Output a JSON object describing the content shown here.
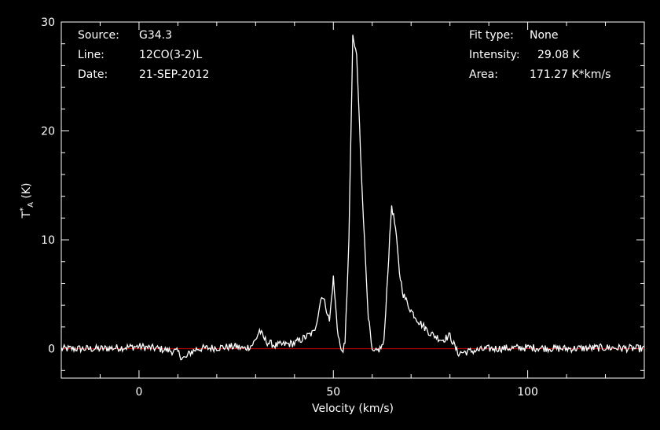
{
  "info_left": {
    "source_label": "Source:",
    "source_value": "G34.3",
    "line_label": "Line:",
    "line_value": "12CO(3-2)L",
    "date_label": "Date:",
    "date_value": "21-SEP-2012"
  },
  "info_right": {
    "fit_label": "Fit type:",
    "fit_value": "None",
    "intensity_label": "Intensity:",
    "intensity_value": "29.08 K",
    "area_label": "Area:",
    "area_value": "171.27 K*km/s"
  },
  "chart_data": {
    "type": "line",
    "xlabel": "Velocity (km/s)",
    "ylabel": "T*A (K)",
    "xlim": [
      -20,
      130
    ],
    "ylim": [
      -2.7,
      30
    ],
    "xticks": [
      0,
      50,
      100
    ],
    "yticks": [
      0,
      10,
      20,
      30
    ],
    "colors": {
      "spectrum": "#ffffff",
      "baseline": "#cc0000",
      "axes": "#ffffff",
      "background": "#000000"
    },
    "baseline_y": 0,
    "series": [
      {
        "x": [
          -20,
          -10,
          0,
          5,
          10,
          11,
          12,
          13,
          15,
          20,
          25,
          27,
          29,
          30,
          31,
          32,
          33,
          35,
          40,
          45,
          46,
          47,
          48,
          49,
          50,
          51,
          52,
          53,
          54,
          55,
          56,
          57,
          58,
          59,
          60,
          61,
          62,
          63,
          64,
          65,
          66,
          67,
          68,
          69,
          70,
          72,
          75,
          78,
          80,
          82,
          90,
          100,
          110,
          120,
          130
        ],
        "y": [
          0,
          0,
          0.2,
          0,
          -0.3,
          -0.8,
          -0.9,
          -0.4,
          0,
          0.1,
          0.2,
          0,
          0.3,
          0.8,
          1.7,
          1.0,
          0.6,
          0.3,
          0.5,
          1.5,
          3.0,
          5.0,
          4.0,
          2.5,
          6.5,
          2.0,
          -0.3,
          0.3,
          10,
          28.5,
          27,
          18,
          10,
          3,
          -0.4,
          -0.3,
          0,
          0.5,
          7,
          13.2,
          11,
          7,
          5,
          4.2,
          3.5,
          2.5,
          1.4,
          0.8,
          1.2,
          -0.4,
          0,
          0.1,
          0,
          0.1,
          0
        ]
      }
    ]
  }
}
